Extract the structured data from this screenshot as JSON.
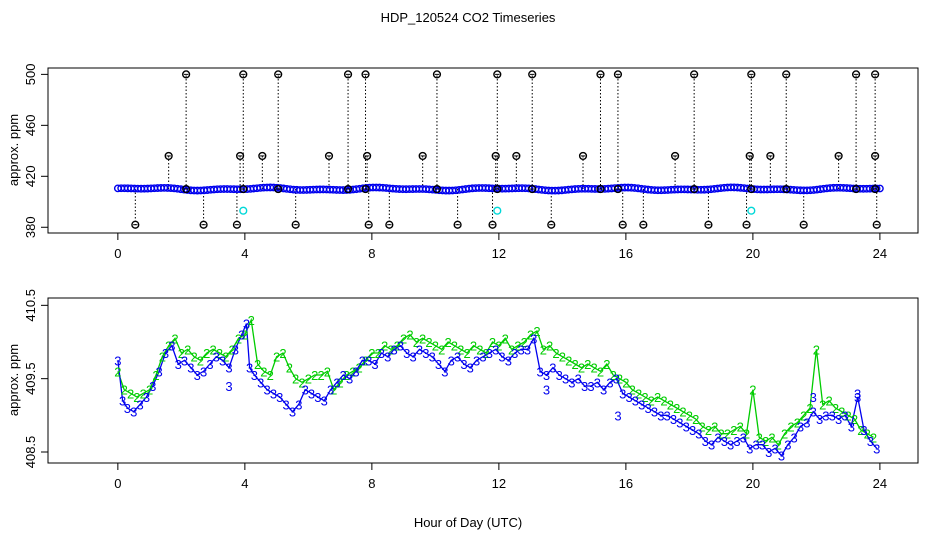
{
  "title": "HDP_120524  CO2 Timeseries",
  "xlabel": "Hour of Day (UTC)",
  "colors": {
    "black": "#000000",
    "blue": "#0000ee",
    "green": "#00cc00",
    "cyan": "#00d8d8"
  },
  "chart_data": [
    {
      "type": "scatter",
      "id": "top",
      "ylabel": "approx. ppm",
      "xlim": [
        -2.2,
        25.2
      ],
      "ylim": [
        375.5,
        505
      ],
      "xticks": [
        0,
        4,
        8,
        12,
        16,
        20,
        24
      ],
      "xtick_labels": [
        "0",
        "4",
        "8",
        "12",
        "16",
        "20",
        "24"
      ],
      "yticks": [
        380,
        420,
        460,
        500
      ],
      "ytick_labels": [
        "380",
        "420",
        "460",
        "500"
      ],
      "baseline": 410,
      "high_spikes": [
        [
          2.15,
          500
        ],
        [
          3.95,
          500
        ],
        [
          5.05,
          500
        ],
        [
          7.25,
          500
        ],
        [
          7.8,
          500
        ],
        [
          10.05,
          500
        ],
        [
          11.95,
          500
        ],
        [
          13.05,
          500
        ],
        [
          15.2,
          500
        ],
        [
          15.75,
          500
        ],
        [
          18.15,
          500
        ],
        [
          19.95,
          500
        ],
        [
          21.05,
          500
        ],
        [
          23.25,
          500
        ],
        [
          23.85,
          500
        ]
      ],
      "mid_spikes": [
        [
          1.6,
          436
        ],
        [
          3.85,
          436
        ],
        [
          4.55,
          436
        ],
        [
          6.65,
          436
        ],
        [
          7.85,
          436
        ],
        [
          9.6,
          436
        ],
        [
          11.9,
          436
        ],
        [
          12.55,
          436
        ],
        [
          14.65,
          436
        ],
        [
          17.55,
          436
        ],
        [
          19.9,
          436
        ],
        [
          20.55,
          436
        ],
        [
          22.7,
          436
        ],
        [
          23.85,
          436
        ]
      ],
      "low_spikes": [
        [
          0.55,
          382
        ],
        [
          2.7,
          382
        ],
        [
          3.75,
          382
        ],
        [
          5.6,
          382
        ],
        [
          7.9,
          382
        ],
        [
          8.55,
          382
        ],
        [
          10.7,
          382
        ],
        [
          11.8,
          382
        ],
        [
          13.65,
          382
        ],
        [
          15.9,
          382
        ],
        [
          16.55,
          382
        ],
        [
          18.6,
          382
        ],
        [
          19.8,
          382
        ],
        [
          21.6,
          382
        ],
        [
          23.9,
          382
        ]
      ],
      "cyan_points": [
        [
          3.95,
          393
        ],
        [
          11.95,
          393
        ],
        [
          19.95,
          393
        ]
      ]
    },
    {
      "type": "line",
      "id": "bottom",
      "ylabel": "approx. ppm",
      "xlim": [
        -2.2,
        25.2
      ],
      "ylim": [
        408.35,
        410.6
      ],
      "xticks": [
        0,
        4,
        8,
        12,
        16,
        20,
        24
      ],
      "xtick_labels": [
        "0",
        "4",
        "8",
        "12",
        "16",
        "20",
        "24"
      ],
      "yticks": [
        408.5,
        409.5,
        410.5
      ],
      "ytick_labels": [
        "408.5",
        "409.5",
        "410.5"
      ],
      "series": [
        {
          "name": "3",
          "marker": "3",
          "color": "#0000ee",
          "x": [
            0.0,
            0.15,
            0.3,
            0.5,
            0.7,
            0.9,
            1.1,
            1.3,
            1.5,
            1.7,
            1.9,
            2.1,
            2.3,
            2.5,
            2.7,
            2.9,
            3.1,
            3.3,
            3.5,
            3.7,
            3.9,
            4.05,
            4.15,
            4.3,
            4.5,
            4.7,
            4.9,
            5.1,
            5.3,
            5.5,
            5.7,
            5.9,
            6.1,
            6.3,
            6.5,
            6.7,
            6.9,
            7.1,
            7.3,
            7.5,
            7.7,
            7.9,
            8.1,
            8.3,
            8.5,
            8.7,
            8.9,
            9.1,
            9.3,
            9.5,
            9.7,
            9.9,
            10.1,
            10.3,
            10.5,
            10.7,
            10.9,
            11.1,
            11.3,
            11.5,
            11.7,
            11.9,
            12.1,
            12.3,
            12.5,
            12.7,
            12.9,
            13.1,
            13.3,
            13.5,
            13.7,
            13.9,
            14.1,
            14.3,
            14.5,
            14.7,
            14.9,
            15.1,
            15.3,
            15.5,
            15.7,
            15.9,
            16.1,
            16.3,
            16.5,
            16.7,
            16.9,
            17.1,
            17.3,
            17.5,
            17.7,
            17.9,
            18.1,
            18.3,
            18.5,
            18.7,
            18.9,
            19.1,
            19.3,
            19.5,
            19.7,
            19.9,
            20.1,
            20.3,
            20.5,
            20.7,
            20.9,
            21.1,
            21.3,
            21.5,
            21.7,
            21.9,
            22.1,
            22.3,
            22.5,
            22.7,
            22.9,
            23.1,
            23.3,
            23.5,
            23.7,
            23.9
          ],
          "y": [
            409.75,
            409.2,
            409.1,
            409.05,
            409.15,
            409.25,
            409.4,
            409.6,
            409.85,
            409.95,
            409.7,
            409.75,
            409.65,
            409.55,
            409.6,
            409.7,
            409.8,
            409.75,
            409.65,
            409.9,
            410.1,
            410.25,
            409.65,
            409.55,
            409.45,
            409.35,
            409.3,
            409.25,
            409.15,
            409.05,
            409.15,
            409.35,
            409.3,
            409.25,
            409.2,
            409.35,
            409.45,
            409.55,
            409.5,
            409.6,
            409.75,
            409.75,
            409.7,
            409.85,
            409.8,
            409.9,
            409.95,
            409.85,
            409.8,
            409.9,
            409.85,
            409.8,
            409.7,
            409.6,
            409.75,
            409.8,
            409.7,
            409.65,
            409.75,
            409.8,
            409.85,
            409.9,
            409.8,
            409.75,
            409.85,
            409.9,
            409.9,
            410.05,
            409.6,
            409.55,
            409.65,
            409.55,
            409.5,
            409.45,
            409.5,
            409.4,
            409.4,
            409.45,
            409.35,
            409.45,
            409.5,
            409.3,
            409.25,
            409.2,
            409.15,
            409.1,
            409.05,
            409.0,
            409.0,
            408.95,
            408.9,
            408.85,
            408.8,
            408.75,
            408.65,
            408.6,
            408.7,
            408.65,
            408.6,
            408.65,
            408.7,
            408.55,
            408.6,
            408.6,
            408.5,
            408.55,
            408.45,
            408.6,
            408.7,
            408.85,
            408.9,
            409.05,
            408.95,
            409.0,
            409.0,
            408.95,
            409.0,
            408.85,
            409.25,
            408.8,
            408.65,
            408.55
          ],
          "outliers": [
            [
              3.5,
              409.4
            ],
            [
              13.5,
              409.35
            ],
            [
              15.75,
              409.0
            ],
            [
              21.9,
              409.25
            ],
            [
              23.3,
              409.3
            ]
          ]
        },
        {
          "name": "2",
          "marker": "2",
          "color": "#00cc00",
          "x": [
            0.0,
            0.2,
            0.4,
            0.6,
            0.8,
            1.0,
            1.2,
            1.4,
            1.6,
            1.8,
            2.0,
            2.2,
            2.4,
            2.6,
            2.8,
            3.0,
            3.2,
            3.4,
            3.6,
            3.8,
            4.0,
            4.2,
            4.4,
            4.6,
            4.8,
            5.0,
            5.2,
            5.4,
            5.6,
            5.8,
            6.0,
            6.2,
            6.4,
            6.6,
            6.8,
            7.0,
            7.2,
            7.4,
            7.6,
            7.8,
            8.0,
            8.2,
            8.4,
            8.6,
            8.8,
            9.0,
            9.2,
            9.4,
            9.6,
            9.8,
            10.0,
            10.2,
            10.4,
            10.6,
            10.8,
            11.0,
            11.2,
            11.4,
            11.6,
            11.8,
            12.0,
            12.2,
            12.4,
            12.6,
            12.8,
            13.0,
            13.2,
            13.4,
            13.6,
            13.8,
            14.0,
            14.2,
            14.4,
            14.6,
            14.8,
            15.0,
            15.2,
            15.4,
            15.6,
            15.8,
            16.0,
            16.2,
            16.4,
            16.6,
            16.8,
            17.0,
            17.2,
            17.4,
            17.6,
            17.8,
            18.0,
            18.2,
            18.4,
            18.6,
            18.8,
            19.0,
            19.2,
            19.4,
            19.6,
            19.8,
            20.0,
            20.2,
            20.4,
            20.6,
            20.8,
            21.0,
            21.2,
            21.4,
            21.6,
            21.8,
            22.0,
            22.2,
            22.4,
            22.6,
            22.8,
            23.0,
            23.2,
            23.4,
            23.6,
            23.8
          ],
          "y": [
            409.6,
            409.35,
            409.3,
            409.25,
            409.3,
            409.35,
            409.55,
            409.8,
            409.95,
            410.05,
            409.85,
            409.9,
            409.8,
            409.75,
            409.85,
            409.9,
            409.85,
            409.8,
            409.9,
            410.05,
            410.1,
            410.3,
            409.7,
            409.6,
            409.55,
            409.8,
            409.85,
            409.65,
            409.5,
            409.45,
            409.5,
            409.55,
            409.55,
            409.6,
            409.35,
            409.45,
            409.55,
            409.6,
            409.65,
            409.75,
            409.85,
            409.85,
            409.95,
            409.9,
            409.95,
            410.05,
            410.1,
            410.0,
            410.05,
            410.0,
            409.95,
            409.9,
            410.0,
            409.95,
            409.9,
            409.85,
            409.95,
            409.9,
            409.85,
            410.0,
            409.95,
            410.05,
            409.9,
            409.95,
            410.0,
            410.1,
            410.15,
            409.9,
            409.95,
            409.85,
            409.8,
            409.75,
            409.7,
            409.65,
            409.7,
            409.65,
            409.6,
            409.7,
            409.55,
            409.5,
            409.45,
            409.35,
            409.3,
            409.25,
            409.2,
            409.25,
            409.2,
            409.15,
            409.1,
            409.05,
            409.0,
            408.95,
            408.85,
            408.8,
            408.85,
            408.75,
            408.75,
            408.8,
            408.85,
            408.75,
            409.35,
            408.7,
            408.65,
            408.7,
            408.6,
            408.75,
            408.85,
            408.9,
            409.0,
            409.1,
            409.9,
            409.15,
            409.2,
            409.1,
            409.05,
            409.0,
            408.95,
            408.8,
            408.75,
            408.7
          ]
        }
      ]
    }
  ]
}
